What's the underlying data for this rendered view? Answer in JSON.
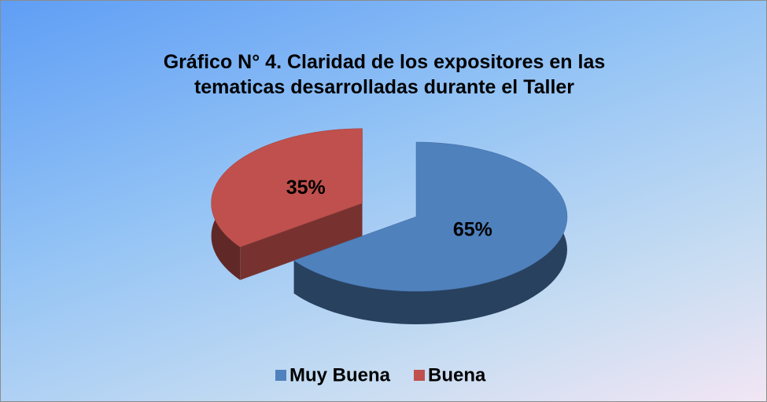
{
  "chart_data": {
    "type": "pie3d",
    "title": "Gráfico N° 4. Claridad de los expositores en las tematicas desarrolladas durante el Taller",
    "categories": [
      "Muy Buena",
      "Buena"
    ],
    "values": [
      65,
      35
    ],
    "value_labels": [
      "65%",
      "35%"
    ],
    "colors": [
      "#4f81bd",
      "#c0504d"
    ],
    "legend": "bottom"
  }
}
